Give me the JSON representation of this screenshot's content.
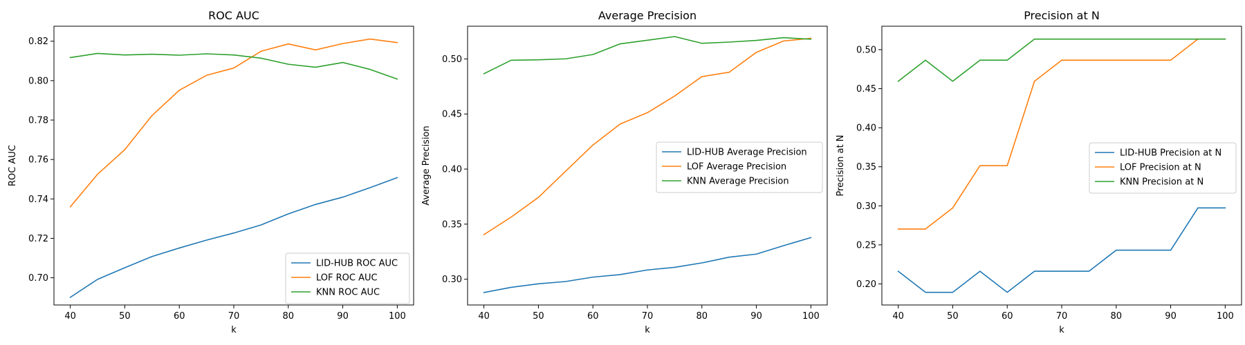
{
  "chart_data": [
    {
      "type": "line",
      "title": "ROC AUC",
      "xlabel": "k",
      "ylabel": "ROC AUC",
      "x": [
        40,
        45,
        50,
        55,
        60,
        65,
        70,
        75,
        80,
        85,
        90,
        95,
        100
      ],
      "xlim": [
        37,
        103
      ],
      "ylim": [
        0.6862,
        0.8276
      ],
      "xticks": [
        40,
        50,
        60,
        70,
        80,
        90,
        100
      ],
      "yticks": [
        0.7,
        0.72,
        0.74,
        0.76,
        0.78,
        0.8,
        0.82
      ],
      "ytick_labels": [
        "0.70",
        "0.72",
        "0.74",
        "0.76",
        "0.78",
        "0.80",
        "0.82"
      ],
      "grid": false,
      "legend_position": "lower-right",
      "series": [
        {
          "name": "LID-HUB ROC AUC",
          "color": "#1f77b4",
          "values": [
            0.6901,
            0.6992,
            0.7051,
            0.7108,
            0.7151,
            0.7191,
            0.7227,
            0.7268,
            0.7324,
            0.7372,
            0.7409,
            0.7457,
            0.7508
          ]
        },
        {
          "name": "LOF ROC AUC",
          "color": "#ff7f0e",
          "values": [
            0.736,
            0.7525,
            0.765,
            0.7823,
            0.7951,
            0.8027,
            0.8064,
            0.8149,
            0.8186,
            0.8156,
            0.8188,
            0.8211,
            0.8193
          ]
        },
        {
          "name": "KNN ROC AUC",
          "color": "#2ca02c",
          "values": [
            0.8117,
            0.8138,
            0.813,
            0.8134,
            0.8129,
            0.8136,
            0.813,
            0.8114,
            0.8083,
            0.8068,
            0.8092,
            0.8057,
            0.8008
          ]
        }
      ]
    },
    {
      "type": "line",
      "title": "Average Precision",
      "xlabel": "k",
      "ylabel": "Average Precision",
      "x": [
        40,
        45,
        50,
        55,
        60,
        65,
        70,
        75,
        80,
        85,
        90,
        95,
        100
      ],
      "xlim": [
        37,
        103
      ],
      "ylim": [
        0.2766,
        0.5297
      ],
      "xticks": [
        40,
        50,
        60,
        70,
        80,
        90,
        100
      ],
      "yticks": [
        0.3,
        0.35,
        0.4,
        0.45,
        0.5
      ],
      "ytick_labels": [
        "0.30",
        "0.35",
        "0.40",
        "0.45",
        "0.50"
      ],
      "grid": false,
      "legend_position": "center-right",
      "series": [
        {
          "name": "LID-HUB Average Precision",
          "color": "#1f77b4",
          "values": [
            0.2879,
            0.2926,
            0.2958,
            0.2979,
            0.3019,
            0.3042,
            0.3084,
            0.3108,
            0.3148,
            0.32,
            0.3228,
            0.3305,
            0.3378
          ]
        },
        {
          "name": "LOF Average Precision",
          "color": "#ff7f0e",
          "values": [
            0.3405,
            0.3564,
            0.3743,
            0.3981,
            0.4218,
            0.4409,
            0.4512,
            0.4663,
            0.484,
            0.4879,
            0.506,
            0.5163,
            0.5187
          ]
        },
        {
          "name": "KNN Average Precision",
          "color": "#2ca02c",
          "values": [
            0.4866,
            0.4988,
            0.4992,
            0.5001,
            0.504,
            0.5137,
            0.517,
            0.5203,
            0.5142,
            0.5153,
            0.5168,
            0.5193,
            0.5179
          ]
        }
      ]
    },
    {
      "type": "line",
      "title": "Precision at N",
      "xlabel": "k",
      "ylabel": "Precision at N",
      "x": [
        40,
        45,
        50,
        55,
        60,
        65,
        70,
        75,
        80,
        85,
        90,
        95,
        100
      ],
      "xlim": [
        37,
        103
      ],
      "ylim": [
        0.173,
        0.53
      ],
      "xticks": [
        40,
        50,
        60,
        70,
        80,
        90,
        100
      ],
      "yticks": [
        0.2,
        0.25,
        0.3,
        0.35,
        0.4,
        0.45,
        0.5
      ],
      "ytick_labels": [
        "0.20",
        "0.25",
        "0.30",
        "0.35",
        "0.40",
        "0.45",
        "0.50"
      ],
      "grid": false,
      "legend_position": "center-right",
      "series": [
        {
          "name": "LID-HUB Precision at N",
          "color": "#1f77b4",
          "values": [
            0.2162,
            0.1892,
            0.1892,
            0.2162,
            0.1892,
            0.2162,
            0.2162,
            0.2162,
            0.2432,
            0.2432,
            0.2432,
            0.2973,
            0.2973
          ]
        },
        {
          "name": "LOF Precision at N",
          "color": "#ff7f0e",
          "values": [
            0.2703,
            0.2703,
            0.2973,
            0.3514,
            0.3514,
            0.4595,
            0.4865,
            0.4865,
            0.4865,
            0.4865,
            0.4865,
            0.5135,
            0.5135
          ]
        },
        {
          "name": "KNN Precision at N",
          "color": "#2ca02c",
          "values": [
            0.4595,
            0.4865,
            0.4595,
            0.4865,
            0.4865,
            0.5135,
            0.5135,
            0.5135,
            0.5135,
            0.5135,
            0.5135,
            0.5135,
            0.5135
          ]
        }
      ]
    }
  ]
}
